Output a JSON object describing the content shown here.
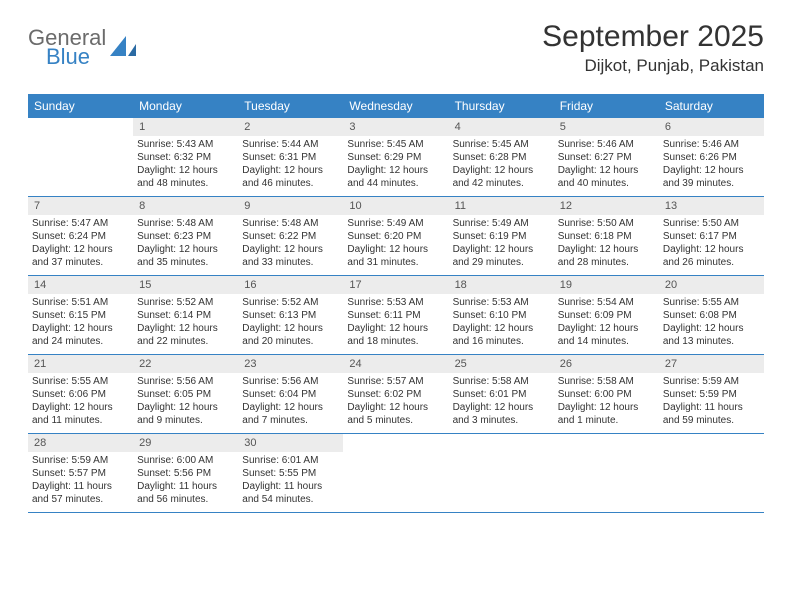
{
  "brand": {
    "name_main": "General",
    "name_sub": "Blue",
    "accent_color": "#3682c4",
    "text_color": "#6b6b6b"
  },
  "title": {
    "month": "September 2025",
    "location": "Dijkot, Punjab, Pakistan"
  },
  "colors": {
    "header_bg": "#3682c4",
    "header_text": "#ffffff",
    "daynum_bg": "#ececec",
    "border": "#3682c4",
    "body_text": "#333333",
    "page_bg": "#ffffff"
  },
  "weekdays": [
    "Sunday",
    "Monday",
    "Tuesday",
    "Wednesday",
    "Thursday",
    "Friday",
    "Saturday"
  ],
  "weeks": [
    [
      {
        "n": "",
        "sunrise": "",
        "sunset": "",
        "daylight": ""
      },
      {
        "n": "1",
        "sunrise": "Sunrise: 5:43 AM",
        "sunset": "Sunset: 6:32 PM",
        "daylight": "Daylight: 12 hours and 48 minutes."
      },
      {
        "n": "2",
        "sunrise": "Sunrise: 5:44 AM",
        "sunset": "Sunset: 6:31 PM",
        "daylight": "Daylight: 12 hours and 46 minutes."
      },
      {
        "n": "3",
        "sunrise": "Sunrise: 5:45 AM",
        "sunset": "Sunset: 6:29 PM",
        "daylight": "Daylight: 12 hours and 44 minutes."
      },
      {
        "n": "4",
        "sunrise": "Sunrise: 5:45 AM",
        "sunset": "Sunset: 6:28 PM",
        "daylight": "Daylight: 12 hours and 42 minutes."
      },
      {
        "n": "5",
        "sunrise": "Sunrise: 5:46 AM",
        "sunset": "Sunset: 6:27 PM",
        "daylight": "Daylight: 12 hours and 40 minutes."
      },
      {
        "n": "6",
        "sunrise": "Sunrise: 5:46 AM",
        "sunset": "Sunset: 6:26 PM",
        "daylight": "Daylight: 12 hours and 39 minutes."
      }
    ],
    [
      {
        "n": "7",
        "sunrise": "Sunrise: 5:47 AM",
        "sunset": "Sunset: 6:24 PM",
        "daylight": "Daylight: 12 hours and 37 minutes."
      },
      {
        "n": "8",
        "sunrise": "Sunrise: 5:48 AM",
        "sunset": "Sunset: 6:23 PM",
        "daylight": "Daylight: 12 hours and 35 minutes."
      },
      {
        "n": "9",
        "sunrise": "Sunrise: 5:48 AM",
        "sunset": "Sunset: 6:22 PM",
        "daylight": "Daylight: 12 hours and 33 minutes."
      },
      {
        "n": "10",
        "sunrise": "Sunrise: 5:49 AM",
        "sunset": "Sunset: 6:20 PM",
        "daylight": "Daylight: 12 hours and 31 minutes."
      },
      {
        "n": "11",
        "sunrise": "Sunrise: 5:49 AM",
        "sunset": "Sunset: 6:19 PM",
        "daylight": "Daylight: 12 hours and 29 minutes."
      },
      {
        "n": "12",
        "sunrise": "Sunrise: 5:50 AM",
        "sunset": "Sunset: 6:18 PM",
        "daylight": "Daylight: 12 hours and 28 minutes."
      },
      {
        "n": "13",
        "sunrise": "Sunrise: 5:50 AM",
        "sunset": "Sunset: 6:17 PM",
        "daylight": "Daylight: 12 hours and 26 minutes."
      }
    ],
    [
      {
        "n": "14",
        "sunrise": "Sunrise: 5:51 AM",
        "sunset": "Sunset: 6:15 PM",
        "daylight": "Daylight: 12 hours and 24 minutes."
      },
      {
        "n": "15",
        "sunrise": "Sunrise: 5:52 AM",
        "sunset": "Sunset: 6:14 PM",
        "daylight": "Daylight: 12 hours and 22 minutes."
      },
      {
        "n": "16",
        "sunrise": "Sunrise: 5:52 AM",
        "sunset": "Sunset: 6:13 PM",
        "daylight": "Daylight: 12 hours and 20 minutes."
      },
      {
        "n": "17",
        "sunrise": "Sunrise: 5:53 AM",
        "sunset": "Sunset: 6:11 PM",
        "daylight": "Daylight: 12 hours and 18 minutes."
      },
      {
        "n": "18",
        "sunrise": "Sunrise: 5:53 AM",
        "sunset": "Sunset: 6:10 PM",
        "daylight": "Daylight: 12 hours and 16 minutes."
      },
      {
        "n": "19",
        "sunrise": "Sunrise: 5:54 AM",
        "sunset": "Sunset: 6:09 PM",
        "daylight": "Daylight: 12 hours and 14 minutes."
      },
      {
        "n": "20",
        "sunrise": "Sunrise: 5:55 AM",
        "sunset": "Sunset: 6:08 PM",
        "daylight": "Daylight: 12 hours and 13 minutes."
      }
    ],
    [
      {
        "n": "21",
        "sunrise": "Sunrise: 5:55 AM",
        "sunset": "Sunset: 6:06 PM",
        "daylight": "Daylight: 12 hours and 11 minutes."
      },
      {
        "n": "22",
        "sunrise": "Sunrise: 5:56 AM",
        "sunset": "Sunset: 6:05 PM",
        "daylight": "Daylight: 12 hours and 9 minutes."
      },
      {
        "n": "23",
        "sunrise": "Sunrise: 5:56 AM",
        "sunset": "Sunset: 6:04 PM",
        "daylight": "Daylight: 12 hours and 7 minutes."
      },
      {
        "n": "24",
        "sunrise": "Sunrise: 5:57 AM",
        "sunset": "Sunset: 6:02 PM",
        "daylight": "Daylight: 12 hours and 5 minutes."
      },
      {
        "n": "25",
        "sunrise": "Sunrise: 5:58 AM",
        "sunset": "Sunset: 6:01 PM",
        "daylight": "Daylight: 12 hours and 3 minutes."
      },
      {
        "n": "26",
        "sunrise": "Sunrise: 5:58 AM",
        "sunset": "Sunset: 6:00 PM",
        "daylight": "Daylight: 12 hours and 1 minute."
      },
      {
        "n": "27",
        "sunrise": "Sunrise: 5:59 AM",
        "sunset": "Sunset: 5:59 PM",
        "daylight": "Daylight: 11 hours and 59 minutes."
      }
    ],
    [
      {
        "n": "28",
        "sunrise": "Sunrise: 5:59 AM",
        "sunset": "Sunset: 5:57 PM",
        "daylight": "Daylight: 11 hours and 57 minutes."
      },
      {
        "n": "29",
        "sunrise": "Sunrise: 6:00 AM",
        "sunset": "Sunset: 5:56 PM",
        "daylight": "Daylight: 11 hours and 56 minutes."
      },
      {
        "n": "30",
        "sunrise": "Sunrise: 6:01 AM",
        "sunset": "Sunset: 5:55 PM",
        "daylight": "Daylight: 11 hours and 54 minutes."
      },
      {
        "n": "",
        "sunrise": "",
        "sunset": "",
        "daylight": ""
      },
      {
        "n": "",
        "sunrise": "",
        "sunset": "",
        "daylight": ""
      },
      {
        "n": "",
        "sunrise": "",
        "sunset": "",
        "daylight": ""
      },
      {
        "n": "",
        "sunrise": "",
        "sunset": "",
        "daylight": ""
      }
    ]
  ]
}
